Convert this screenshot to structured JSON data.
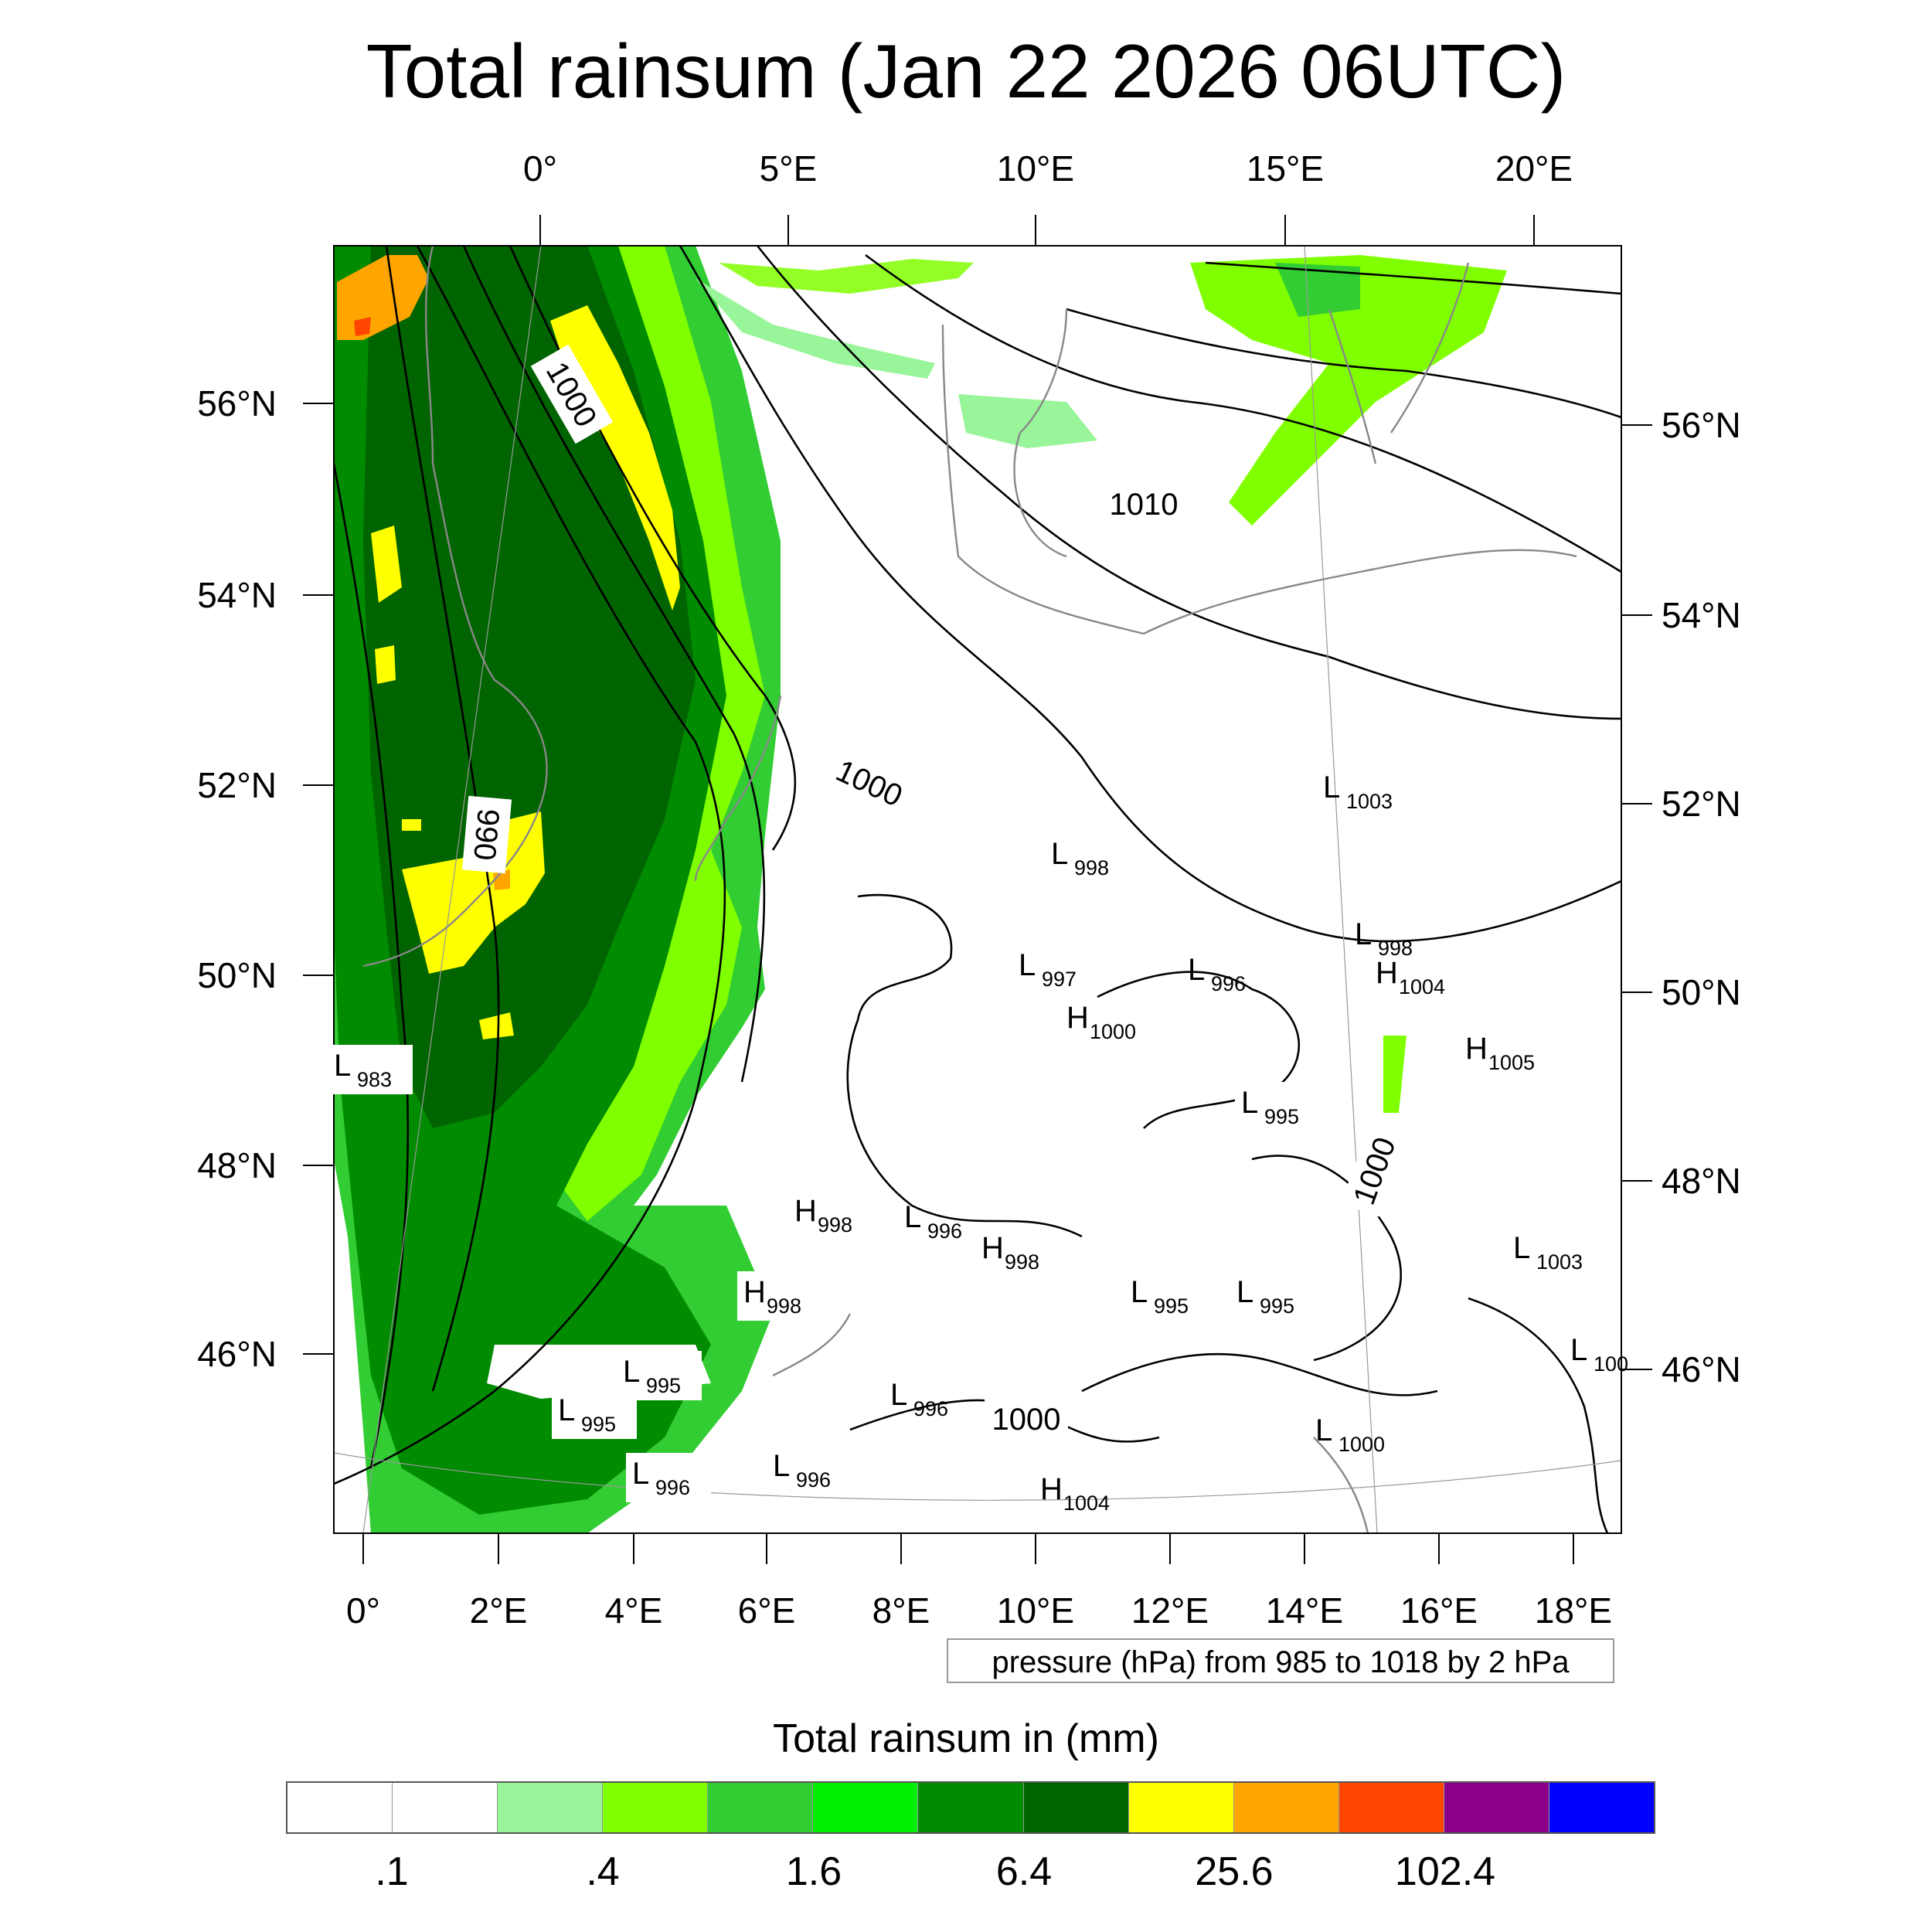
{
  "title": "Total rainsum (Jan 22 2026 06UTC)",
  "map": {
    "top_lon_labels": [
      "0°",
      "5°E",
      "10°E",
      "15°E",
      "20°E"
    ],
    "bottom_lon_labels": [
      "0°",
      "2°E",
      "4°E",
      "6°E",
      "8°E",
      "10°E",
      "12°E",
      "14°E",
      "16°E",
      "18°E"
    ],
    "left_lat_labels": [
      "56°N",
      "54°N",
      "52°N",
      "50°N",
      "48°N",
      "46°N"
    ],
    "right_lat_labels": [
      "56°N",
      "54°N",
      "52°N",
      "50°N",
      "48°N",
      "46°N"
    ],
    "contour_labels": [
      "1000",
      "990",
      "1000",
      "1010",
      "1000",
      "1000"
    ],
    "pressure_centers": [
      {
        "type": "L",
        "value": "1003"
      },
      {
        "type": "L",
        "value": "998"
      },
      {
        "type": "L",
        "value": "998"
      },
      {
        "type": "H",
        "value": "1004"
      },
      {
        "type": "L",
        "value": "997"
      },
      {
        "type": "L",
        "value": "996"
      },
      {
        "type": "H",
        "value": "1000"
      },
      {
        "type": "H",
        "value": "1005"
      },
      {
        "type": "L",
        "value": "983"
      },
      {
        "type": "L",
        "value": "995"
      },
      {
        "type": "H",
        "value": "998"
      },
      {
        "type": "L",
        "value": "996"
      },
      {
        "type": "H",
        "value": "998"
      },
      {
        "type": "L",
        "value": "1003"
      },
      {
        "type": "H",
        "value": "998"
      },
      {
        "type": "L",
        "value": "995"
      },
      {
        "type": "L",
        "value": "995"
      },
      {
        "type": "L",
        "value": "995"
      },
      {
        "type": "L",
        "value": "995"
      },
      {
        "type": "L",
        "value": "996"
      },
      {
        "type": "L",
        "value": "100"
      },
      {
        "type": "L",
        "value": "1000"
      },
      {
        "type": "L",
        "value": "996"
      },
      {
        "type": "L",
        "value": "996"
      },
      {
        "type": "H",
        "value": "1004"
      }
    ]
  },
  "contour_note": "pressure (hPa) from 985 to 1018 by 2 hPa",
  "colorbar": {
    "title": "Total rainsum in (mm)",
    "labels": [
      ".1",
      ".4",
      "1.6",
      "6.4",
      "25.6",
      "102.4"
    ],
    "colors": [
      "#ffffff",
      "#ffffff",
      "#99f599",
      "#80ff00",
      "#32cd32",
      "#00ee00",
      "#008b00",
      "#006400",
      "#ffff00",
      "#ffa500",
      "#ff4500",
      "#8b008b",
      "#0000ff"
    ]
  }
}
